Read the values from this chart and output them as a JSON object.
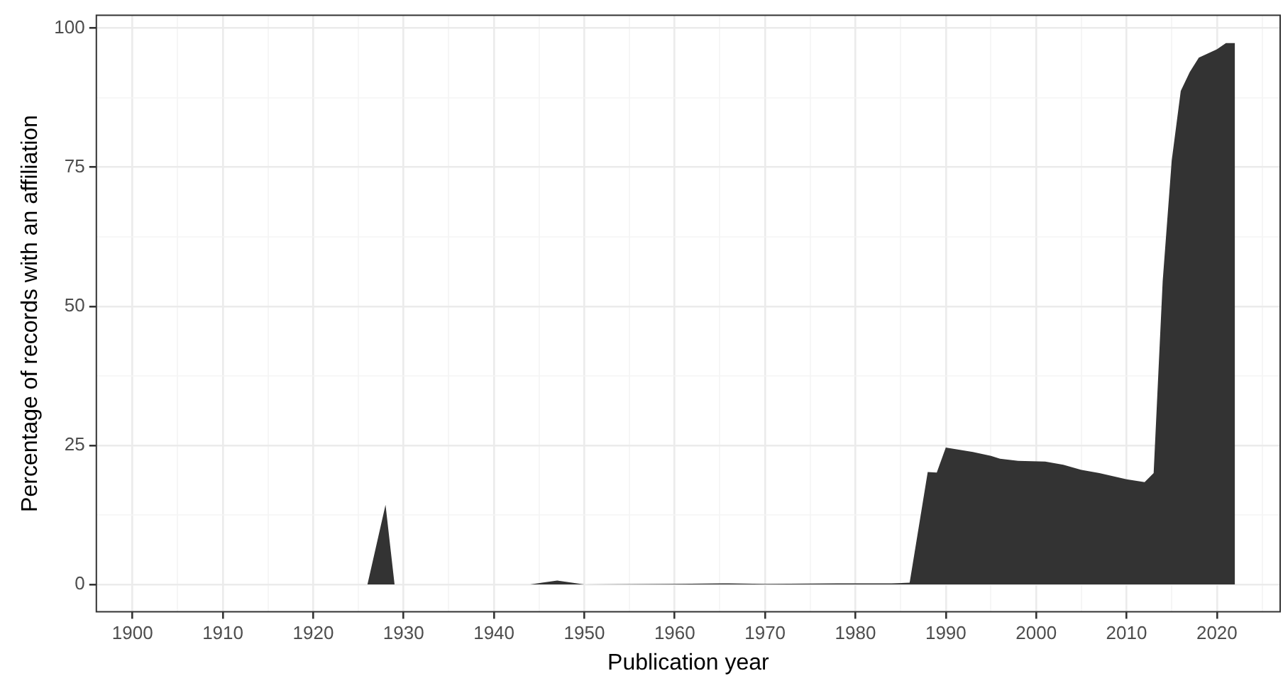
{
  "chart_data": {
    "type": "area",
    "xlabel": "Publication year",
    "ylabel": "Percentage of records with an affiliation",
    "grid": true,
    "legend": false,
    "x": [
      1902,
      1926,
      1928,
      1929,
      1944,
      1947,
      1950,
      1960,
      1966,
      1970,
      1978,
      1984,
      1986,
      1988,
      1989,
      1990,
      1993,
      1995,
      1996,
      1998,
      2001,
      2003,
      2005,
      2007,
      2010,
      2012,
      2013,
      2014,
      2015,
      2016,
      2017,
      2018,
      2020,
      2021,
      2022
    ],
    "series": [
      {
        "color": "#333333",
        "values": [
          0,
          0,
          14.3,
          0,
          0,
          0.7,
          0,
          0.1,
          0.2,
          0.1,
          0.2,
          0.2,
          0.3,
          20.2,
          20.1,
          24.6,
          23.8,
          23.1,
          22.6,
          22.2,
          22.1,
          21.5,
          20.6,
          20.0,
          18.9,
          18.4,
          20.0,
          54.5,
          76.2,
          88.7,
          92.1,
          94.7,
          96.2,
          97.3,
          97.3
        ]
      }
    ],
    "xlim": [
      1896,
      2027
    ],
    "ylim": [
      -4.9,
      102.3
    ],
    "xticks": [
      1900,
      {
        "value": 1905,
        "label": null
      },
      1910,
      {
        "value": 1915,
        "label": null
      },
      1920,
      {
        "value": 1925,
        "label": null
      },
      1930,
      {
        "value": 1935,
        "label": null
      },
      1940,
      {
        "value": 1945,
        "label": null
      },
      1950,
      {
        "value": 1955,
        "label": null
      },
      1960,
      {
        "value": 1965,
        "label": null
      },
      1970,
      {
        "value": 1975,
        "label": null
      },
      1980,
      {
        "value": 1985,
        "label": null
      },
      1990,
      {
        "value": 1995,
        "label": null
      },
      2000,
      {
        "value": 2005,
        "label": null
      },
      2010,
      {
        "value": 2015,
        "label": null
      },
      2020,
      {
        "value": 2025,
        "label": null
      }
    ],
    "yticks": [
      0,
      {
        "value": 12.5,
        "label": null
      },
      25,
      {
        "value": 37.5,
        "label": null
      },
      50,
      {
        "value": 62.5,
        "label": null
      },
      75,
      {
        "value": 87.5,
        "label": null
      },
      100
    ]
  }
}
